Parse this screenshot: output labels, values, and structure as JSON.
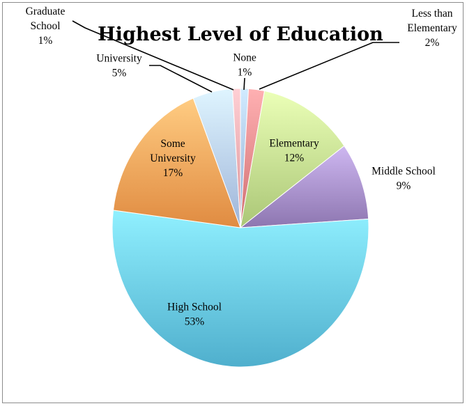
{
  "chart_data": {
    "type": "pie",
    "title": "Highest Level of Education",
    "slices": [
      {
        "key": "none",
        "label": "None",
        "label_lines": [
          "None",
          "1%"
        ],
        "value": 1,
        "display": "1%",
        "color": "#a9c3ea"
      },
      {
        "key": "less-than-elementary",
        "label": "Less than Elementary",
        "label_lines": [
          "Less than",
          "Elementary",
          "2%"
        ],
        "value": 2,
        "display": "2%",
        "color": "#e8888a"
      },
      {
        "key": "elementary",
        "label": "Elementary",
        "label_lines": [
          "Elementary",
          "12%"
        ],
        "value": 12,
        "display": "12%",
        "color": "#c3df8f"
      },
      {
        "key": "middle-school",
        "label": "Middle School",
        "label_lines": [
          "Middle School",
          "9%"
        ],
        "value": 9,
        "display": "9%",
        "color": "#a68fc9"
      },
      {
        "key": "high-school",
        "label": "High School",
        "label_lines": [
          "High School",
          "53%"
        ],
        "value": 53,
        "display": "53%",
        "color": "#68c8e6"
      },
      {
        "key": "some-university",
        "label": "Some University",
        "label_lines": [
          "Some",
          "University",
          "17%"
        ],
        "value": 17,
        "display": "17%",
        "color": "#f9a45a"
      },
      {
        "key": "university",
        "label": "University",
        "label_lines": [
          "University",
          "5%"
        ],
        "value": 5,
        "display": "5%",
        "color": "#b7cdf1"
      },
      {
        "key": "graduate-school",
        "label": "Graduate School",
        "label_lines": [
          "Graduate",
          "School",
          "1%"
        ],
        "value": 1,
        "display": "1%",
        "color": "#f2a8ad"
      }
    ],
    "legend": "none",
    "data_labels": "category and percent"
  }
}
